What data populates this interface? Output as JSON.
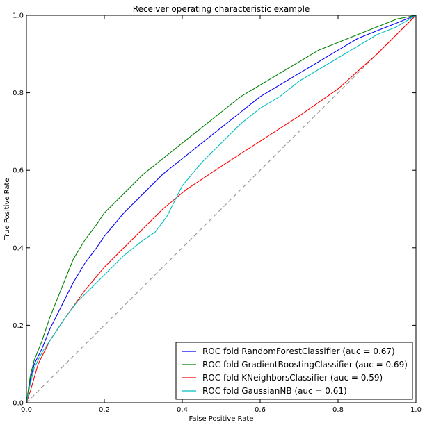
{
  "chart_data": {
    "type": "line",
    "title": "Receiver operating characteristic example",
    "xlabel": "False Positive Rate",
    "ylabel": "True Positive Rate",
    "xlim": [
      0.0,
      1.0
    ],
    "ylim": [
      0.0,
      1.0
    ],
    "grid": false,
    "legend_position": "bottom-right",
    "xticks": [
      "0.0",
      "0.2",
      "0.4",
      "0.6",
      "0.8",
      "1.0"
    ],
    "yticks": [
      "0.0",
      "0.2",
      "0.4",
      "0.6",
      "0.8",
      "1.0"
    ],
    "reference_line": {
      "x": [
        0,
        1
      ],
      "y": [
        0,
        1
      ],
      "color": "#999999",
      "style": "dashed"
    },
    "series": [
      {
        "name": "ROC fold RandomForestClassifier (auc = 0.67)",
        "color": "#0000ff",
        "x": [
          0,
          0.01,
          0.02,
          0.04,
          0.06,
          0.08,
          0.1,
          0.12,
          0.15,
          0.18,
          0.2,
          0.25,
          0.3,
          0.35,
          0.4,
          0.45,
          0.5,
          0.55,
          0.6,
          0.65,
          0.7,
          0.75,
          0.8,
          0.85,
          0.9,
          0.95,
          1.0
        ],
        "y": [
          0,
          0.06,
          0.1,
          0.14,
          0.19,
          0.23,
          0.27,
          0.31,
          0.36,
          0.4,
          0.43,
          0.49,
          0.54,
          0.59,
          0.63,
          0.67,
          0.71,
          0.75,
          0.79,
          0.82,
          0.85,
          0.88,
          0.91,
          0.94,
          0.96,
          0.98,
          1.0
        ]
      },
      {
        "name": "ROC fold GradientBoostingClassifier (auc = 0.69)",
        "color": "#008000",
        "x": [
          0,
          0.01,
          0.02,
          0.04,
          0.06,
          0.08,
          0.1,
          0.12,
          0.15,
          0.18,
          0.2,
          0.25,
          0.3,
          0.35,
          0.4,
          0.45,
          0.5,
          0.55,
          0.6,
          0.65,
          0.7,
          0.75,
          0.8,
          0.85,
          0.9,
          0.95,
          1.0
        ],
        "y": [
          0,
          0.07,
          0.11,
          0.16,
          0.22,
          0.27,
          0.32,
          0.37,
          0.42,
          0.46,
          0.49,
          0.54,
          0.59,
          0.63,
          0.67,
          0.71,
          0.75,
          0.79,
          0.82,
          0.85,
          0.88,
          0.91,
          0.93,
          0.95,
          0.97,
          0.99,
          1.0
        ]
      },
      {
        "name": "ROC fold KNeighborsClassifier (auc = 0.59)",
        "color": "#ff0000",
        "x": [
          0,
          0.01,
          0.03,
          0.06,
          0.1,
          0.15,
          0.2,
          0.25,
          0.3,
          0.35,
          0.41,
          0.5,
          0.6,
          0.7,
          0.8,
          0.9,
          1.0
        ],
        "y": [
          0,
          0.03,
          0.1,
          0.16,
          0.22,
          0.29,
          0.35,
          0.4,
          0.45,
          0.5,
          0.55,
          0.61,
          0.675,
          0.74,
          0.81,
          0.9,
          1.0
        ]
      },
      {
        "name": "ROC fold GaussianNB (auc = 0.61)",
        "color": "#00bfbf",
        "x": [
          0,
          0.01,
          0.02,
          0.04,
          0.06,
          0.08,
          0.1,
          0.13,
          0.16,
          0.2,
          0.25,
          0.3,
          0.33,
          0.36,
          0.4,
          0.45,
          0.5,
          0.55,
          0.6,
          0.65,
          0.7,
          0.75,
          0.8,
          0.85,
          0.9,
          0.95,
          1.0
        ],
        "y": [
          0,
          0.05,
          0.09,
          0.13,
          0.16,
          0.19,
          0.22,
          0.26,
          0.29,
          0.33,
          0.38,
          0.42,
          0.44,
          0.48,
          0.56,
          0.62,
          0.67,
          0.72,
          0.76,
          0.79,
          0.83,
          0.86,
          0.89,
          0.92,
          0.95,
          0.97,
          1.0
        ]
      }
    ]
  }
}
